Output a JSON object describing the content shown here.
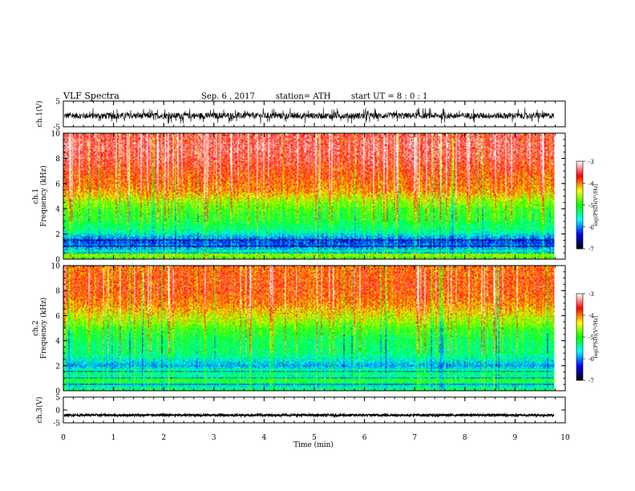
{
  "header": {
    "title": "VLF  Spectra",
    "date": "Sep. 6  , 2017",
    "station": "station= ATH",
    "start_ut": "start  UT  =   8  : 0  : 1"
  },
  "chart_data": [
    {
      "type": "line",
      "name": "ch1-waveform",
      "ylabel": "ch.1(V)",
      "ylim": [
        -5,
        5
      ],
      "yticks": [
        "5",
        "-5"
      ],
      "x_end": 9.8,
      "baseline": -0.7,
      "band": [
        -1.8,
        0.6
      ]
    },
    {
      "type": "heatmap",
      "name": "ch1-spectrogram",
      "ylabel": "ch.1\nFrequency  (kHz)",
      "ylim": [
        0,
        10
      ],
      "yticks": [
        "0",
        "2",
        "4",
        "6",
        "8",
        "10"
      ],
      "x_end": 9.8,
      "colorbar": {
        "label": "log(PSD)(V²/Hz)",
        "range": [
          -7,
          -3
        ],
        "ticks": [
          "-3",
          "-4",
          "-5",
          "-6",
          "-7"
        ]
      },
      "profile": [
        [
          0.0,
          -5.0
        ],
        [
          0.3,
          -4.5
        ],
        [
          0.6,
          -5.5
        ],
        [
          1.0,
          -6.0
        ],
        [
          1.4,
          -6.2
        ],
        [
          1.8,
          -5.8
        ],
        [
          2.2,
          -5.4
        ],
        [
          2.7,
          -5.2
        ],
        [
          3.2,
          -5.0
        ],
        [
          3.8,
          -4.9
        ],
        [
          4.5,
          -4.6
        ],
        [
          5.0,
          -4.3
        ],
        [
          5.5,
          -4.0
        ],
        [
          6.0,
          -3.9
        ],
        [
          7.0,
          -3.7
        ],
        [
          8.0,
          -3.5
        ],
        [
          9.0,
          -3.4
        ],
        [
          10.0,
          -3.5
        ]
      ]
    },
    {
      "type": "heatmap",
      "name": "ch2-spectrogram",
      "ylabel": "ch.2\nFrequency  (kHz)",
      "ylim": [
        0,
        10
      ],
      "yticks": [
        "0",
        "2",
        "4",
        "6",
        "8",
        "10"
      ],
      "x_end": 9.8,
      "colorbar": {
        "label": "log(PSD)(V²/Hz)",
        "range": [
          -7,
          -3
        ],
        "ticks": [
          "-3",
          "-4",
          "-5",
          "-6",
          "-7"
        ]
      },
      "profile": [
        [
          0.0,
          -5.2
        ],
        [
          0.4,
          -5.6
        ],
        [
          0.8,
          -5.0
        ],
        [
          1.2,
          -5.4
        ],
        [
          1.6,
          -5.3
        ],
        [
          2.0,
          -5.9
        ],
        [
          2.4,
          -5.6
        ],
        [
          3.0,
          -5.3
        ],
        [
          4.0,
          -5.2
        ],
        [
          5.0,
          -4.9
        ],
        [
          5.5,
          -4.6
        ],
        [
          6.0,
          -4.4
        ],
        [
          7.0,
          -4.0
        ],
        [
          8.0,
          -3.8
        ],
        [
          9.0,
          -3.8
        ],
        [
          10.0,
          -3.9
        ]
      ]
    },
    {
      "type": "line",
      "name": "ch3-waveform",
      "ylabel": "ch.3(V)",
      "ylim": [
        -5,
        5
      ],
      "yticks": [
        "5",
        "0",
        "-5"
      ],
      "x_end": 9.8,
      "baseline": -2.0,
      "band": [
        -2.4,
        -1.6
      ]
    }
  ],
  "x_axis": {
    "label": "Time  (min)",
    "range": [
      0,
      10
    ],
    "ticks": [
      "0",
      "1",
      "2",
      "3",
      "4",
      "5",
      "6",
      "7",
      "8",
      "9",
      "10"
    ]
  },
  "colors": {
    "colormap": [
      "#000000",
      "#0000ff",
      "#00ffff",
      "#00ff00",
      "#ffff00",
      "#ff0000",
      "#ffffff"
    ]
  }
}
